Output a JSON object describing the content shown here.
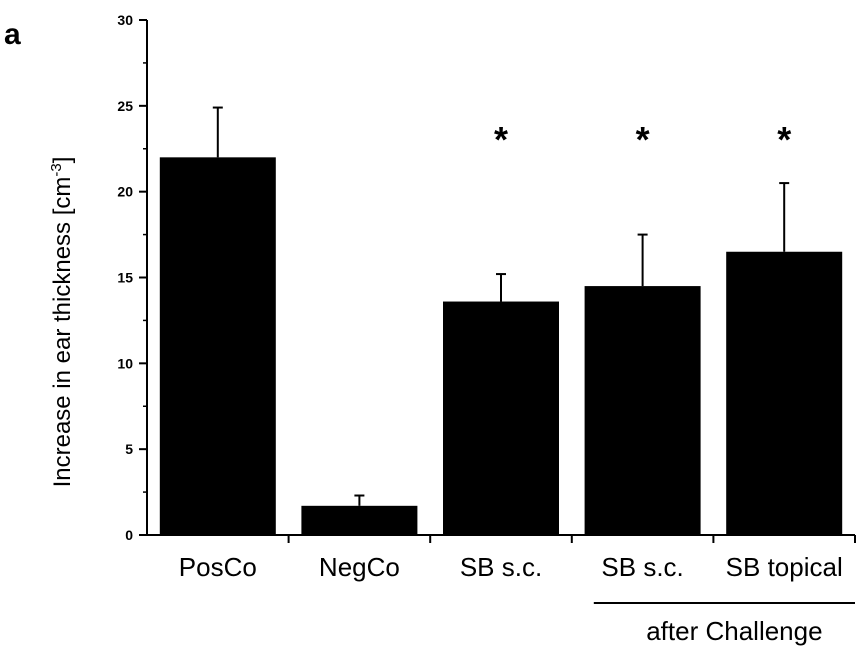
{
  "panel_letter": "a",
  "chart_data": {
    "type": "bar",
    "categories": [
      "PosCo",
      "NegCo",
      "SB s.c.",
      "SB s.c.",
      "SB topical"
    ],
    "values": [
      22.0,
      1.7,
      13.6,
      14.5,
      16.5
    ],
    "error_bars": [
      2.9,
      0.6,
      1.6,
      3.0,
      4.0
    ],
    "significance": [
      "",
      "",
      "*",
      "*",
      "*"
    ],
    "ylabel": "Increase in ear thickness [cm",
    "ylabel_superscript": "-3",
    "ylabel_suffix": "]",
    "ylim": [
      0,
      30
    ],
    "yticks": [
      0,
      5,
      10,
      15,
      20,
      25,
      30
    ],
    "bar_color": "#000000",
    "grid": false,
    "group_label": "after Challenge",
    "group_label_span": [
      3,
      4
    ]
  }
}
